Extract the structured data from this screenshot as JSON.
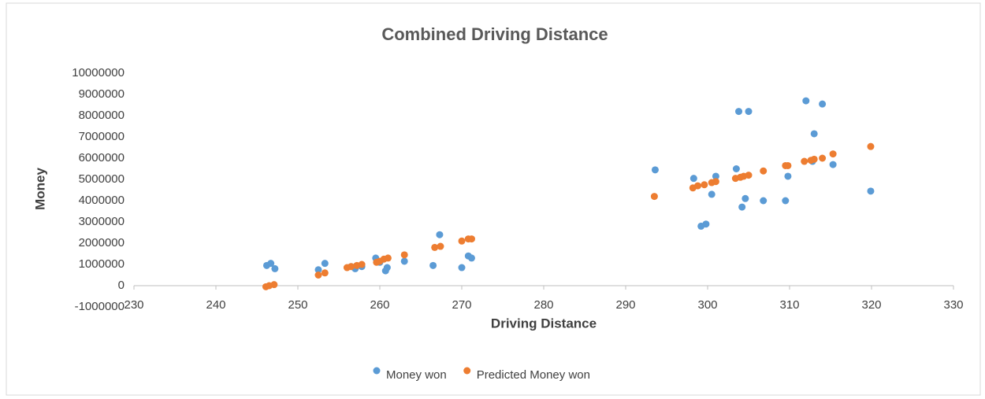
{
  "chart_data": {
    "type": "scatter",
    "title": "Combined Driving Distance",
    "x_label": "Driving Distance",
    "y_label": "Money",
    "xlim": [
      230,
      330
    ],
    "xticks": [
      230,
      240,
      250,
      260,
      270,
      280,
      290,
      300,
      310,
      320,
      330
    ],
    "ylim": [
      -1000000,
      10000000
    ],
    "yticks": [
      -1000000,
      0,
      1000000,
      2000000,
      3000000,
      4000000,
      5000000,
      6000000,
      7000000,
      8000000,
      9000000,
      10000000
    ],
    "grid": false,
    "legend": "bottom",
    "series": [
      {
        "name": "Money won",
        "color": "#5b9bd5",
        "x": [
          246.2,
          246.7,
          247.2,
          252.5,
          253.3,
          256.5,
          257,
          257.8,
          259.5,
          260,
          260.7,
          260.9,
          263,
          266.5,
          267.3,
          270,
          270.8,
          271.2,
          293.6,
          298.3,
          299.2,
          299.8,
          300.5,
          301,
          303.5,
          303.8,
          304.2,
          304.6,
          305,
          306.8,
          309.5,
          309.8,
          312,
          313,
          312.8,
          314,
          315.3,
          319.9
        ],
        "values": [
          950000,
          1050000,
          800000,
          750000,
          1050000,
          900000,
          800000,
          900000,
          1300000,
          1100000,
          700000,
          850000,
          1150000,
          950000,
          2400000,
          850000,
          1400000,
          1300000,
          5450000,
          5050000,
          2800000,
          2900000,
          4300000,
          5150000,
          5500000,
          8200000,
          3700000,
          4100000,
          8200000,
          4000000,
          4000000,
          5150000,
          8700000,
          7150000,
          5850000,
          8550000,
          5700000,
          4450000
        ]
      },
      {
        "name": "Predicted Money won",
        "color": "#ed7d31",
        "x": [
          246.1,
          246.5,
          247.1,
          252.5,
          253.3,
          256,
          256.5,
          257.2,
          257.8,
          259.6,
          260,
          260.5,
          261,
          263,
          266.7,
          267.4,
          270,
          270.8,
          271.2,
          293.5,
          298.2,
          298.8,
          299.6,
          300.5,
          301,
          303.4,
          304,
          304.4,
          305,
          306.8,
          309.5,
          309.8,
          311.8,
          312.6,
          313,
          314,
          315.3,
          319.9
        ],
        "values": [
          -50000,
          0,
          50000,
          500000,
          600000,
          850000,
          900000,
          950000,
          1000000,
          1100000,
          1150000,
          1250000,
          1300000,
          1450000,
          1800000,
          1850000,
          2100000,
          2200000,
          2200000,
          4200000,
          4600000,
          4700000,
          4750000,
          4850000,
          4900000,
          5050000,
          5100000,
          5150000,
          5200000,
          5400000,
          5650000,
          5650000,
          5850000,
          5900000,
          5950000,
          6000000,
          6200000,
          6550000
        ]
      }
    ]
  }
}
